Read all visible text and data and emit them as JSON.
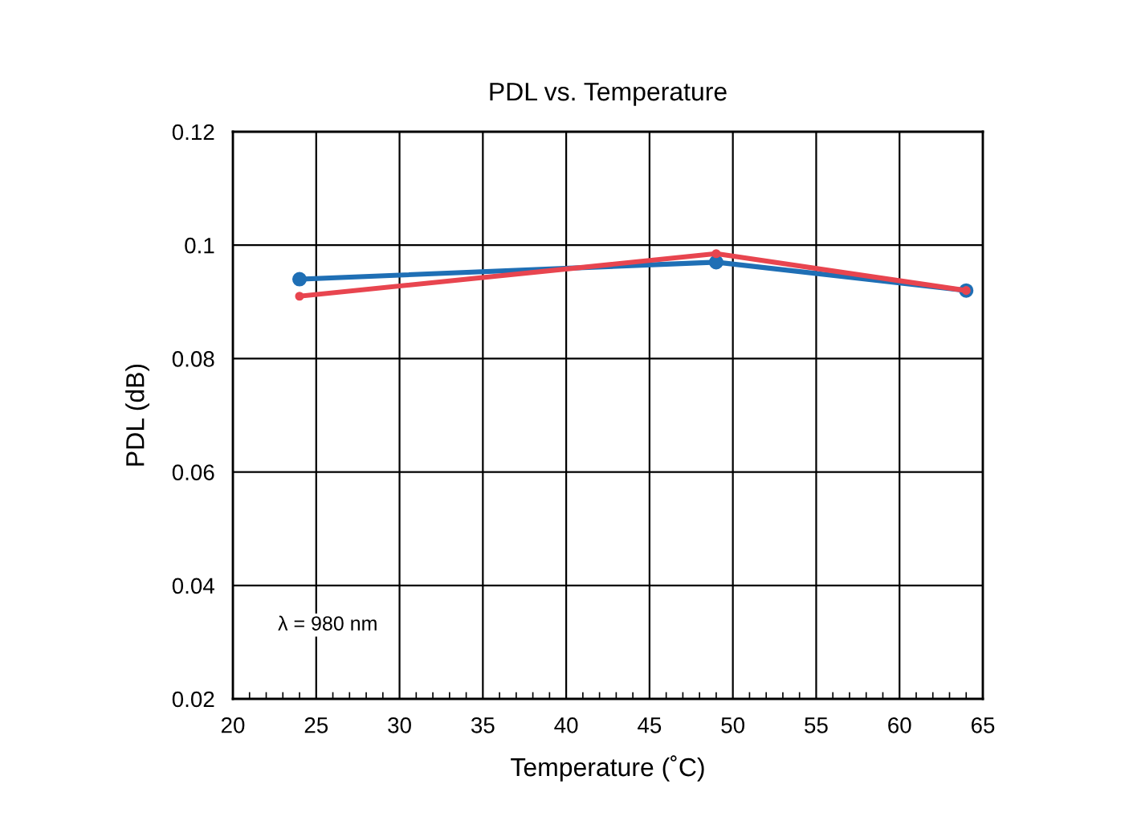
{
  "chart_data": {
    "type": "line",
    "title": "PDL vs. Temperature",
    "xlabel": "Temperature (˚C)",
    "ylabel": "PDL (dB)",
    "series": [
      {
        "color": "#1f6fb5",
        "x": [
          24,
          49,
          64
        ],
        "values": [
          0.094,
          0.097,
          0.092
        ]
      },
      {
        "color": "#e8454f",
        "x": [
          24,
          49,
          64
        ],
        "values": [
          0.091,
          0.0985,
          0.092
        ]
      }
    ],
    "xlim": [
      20,
      65
    ],
    "xticks": [
      20,
      25,
      30,
      35,
      40,
      45,
      50,
      55,
      60,
      65
    ],
    "ylim": [
      0.02,
      0.12
    ],
    "yticks": [
      0.02,
      0.04,
      0.06,
      0.08,
      0.1,
      0.12
    ],
    "grid": true,
    "marker": "circle",
    "line_style": "solid",
    "annotations": [
      "λ = 980 nm"
    ]
  }
}
